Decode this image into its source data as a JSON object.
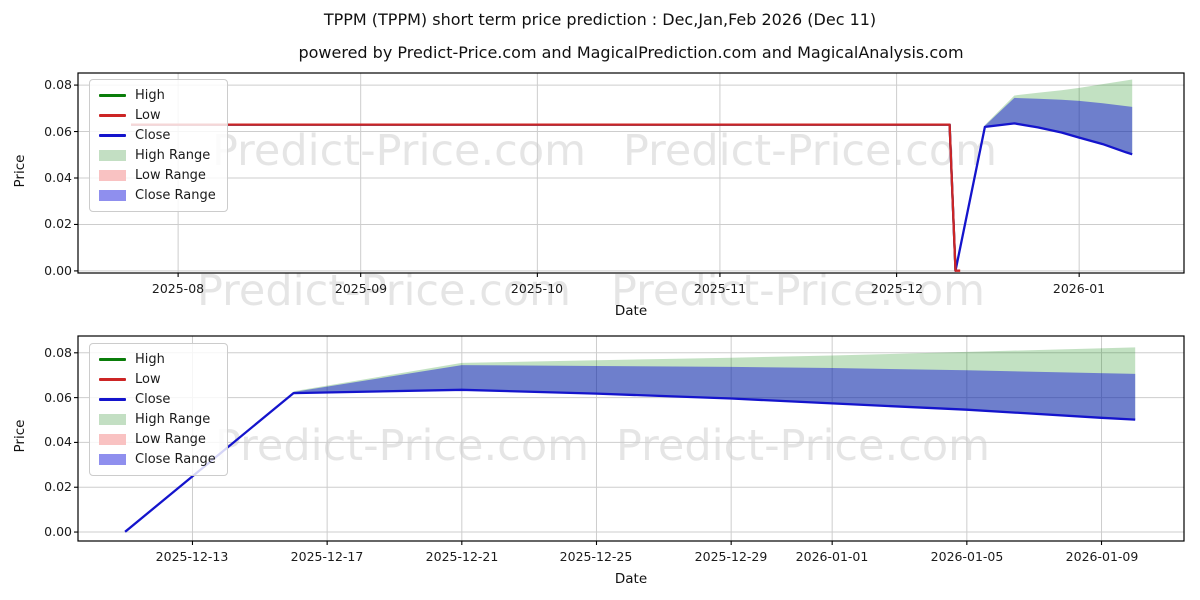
{
  "header": {
    "title": "TPPM (TPPM) short term price prediction : Dec,Jan,Feb 2026 (Dec 11)",
    "subtitle": "powered by Predict-Price.com and MagicalPrediction.com and MagicalAnalysis.com"
  },
  "watermark": {
    "text": "Predict-Price.com"
  },
  "colors": {
    "high_line": "#0a7d0a",
    "low_line": "#cc2525",
    "close_line": "#1414cc",
    "high_range_fill": "#c3dfc3",
    "low_range_fill": "#f9c2c2",
    "close_range_fill": "#8f8fee",
    "grid": "#cdcdcd",
    "spine": "#000000",
    "watermark_gray": "rgba(0,0,0,0.10)"
  },
  "legend_items": [
    {
      "label": "High",
      "swatch": "line",
      "color": "#0a7d0a"
    },
    {
      "label": "Low",
      "swatch": "line",
      "color": "#cc2525"
    },
    {
      "label": "Close",
      "swatch": "line",
      "color": "#1414cc"
    },
    {
      "label": "High Range",
      "swatch": "patch",
      "color": "#c3dfc3"
    },
    {
      "label": "Low Range",
      "swatch": "patch",
      "color": "#f9c2c2"
    },
    {
      "label": "Close Range",
      "swatch": "patch",
      "color": "#8f8fee"
    }
  ],
  "chart_data": [
    {
      "type": "line",
      "name": "history-and-prediction",
      "xlabel": "Date",
      "ylabel": "Price",
      "x_unit": "days since 2025-07-24",
      "xlim": [
        -9,
        178.8
      ],
      "ylim": [
        -0.0009,
        0.0852
      ],
      "grid": true,
      "legend_position": "upper left",
      "xticks": [
        {
          "x": 8,
          "label": "2025-08"
        },
        {
          "x": 39,
          "label": "2025-09"
        },
        {
          "x": 69,
          "label": "2025-10"
        },
        {
          "x": 100,
          "label": "2025-11"
        },
        {
          "x": 130,
          "label": "2025-12"
        },
        {
          "x": 161,
          "label": "2026-01"
        }
      ],
      "yticks": [
        {
          "y": 0.0,
          "label": "0.00"
        },
        {
          "y": 0.02,
          "label": "0.02"
        },
        {
          "y": 0.04,
          "label": "0.04"
        },
        {
          "y": 0.06,
          "label": "0.06"
        },
        {
          "y": 0.08,
          "label": "0.08"
        }
      ],
      "bands": [
        {
          "name": "High Range",
          "fill": "rgba(0,128,0,0.24)",
          "upper": [
            [
              145,
              0.0628
            ],
            [
              150,
              0.0755
            ],
            [
              154,
              0.0767
            ],
            [
              158,
              0.0778
            ],
            [
              161,
              0.0788
            ],
            [
              165,
              0.0804
            ],
            [
              170,
              0.0824
            ]
          ],
          "lower": [
            [
              170,
              0.0502
            ],
            [
              169,
              0.051
            ],
            [
              165,
              0.0546
            ],
            [
              161,
              0.0574
            ],
            [
              158,
              0.0596
            ],
            [
              154,
              0.0618
            ],
            [
              150,
              0.0635
            ],
            [
              145,
              0.062
            ]
          ]
        },
        {
          "name": "Close Range",
          "fill": "rgba(10,10,215,0.46)",
          "upper": [
            [
              145,
              0.0625
            ],
            [
              150,
              0.0745
            ],
            [
              154,
              0.0741
            ],
            [
              158,
              0.0737
            ],
            [
              161,
              0.0732
            ],
            [
              165,
              0.0722
            ],
            [
              170,
              0.0706
            ]
          ],
          "lower": [
            [
              170,
              0.0502
            ],
            [
              169,
              0.051
            ],
            [
              165,
              0.0546
            ],
            [
              161,
              0.0574
            ],
            [
              158,
              0.0596
            ],
            [
              154,
              0.0618
            ],
            [
              150,
              0.0635
            ],
            [
              145,
              0.062
            ]
          ]
        }
      ],
      "series": [
        {
          "name": "High",
          "color": "#0a7d0a",
          "width": 2.2,
          "points": [
            [
              0,
              0.063
            ],
            [
              139,
              0.063
            ],
            [
              140,
              0.0001
            ]
          ]
        },
        {
          "name": "Close",
          "color": "#1414cc",
          "width": 2.3,
          "points": [
            [
              0,
              0.063
            ],
            [
              139,
              0.063
            ],
            [
              140,
              0.0001
            ],
            [
              145,
              0.062
            ],
            [
              150,
              0.0635
            ],
            [
              154,
              0.0618
            ],
            [
              158,
              0.0596
            ],
            [
              161,
              0.0574
            ],
            [
              165,
              0.0546
            ],
            [
              169,
              0.051
            ],
            [
              170,
              0.0502
            ]
          ]
        },
        {
          "name": "Low",
          "color": "#cc2525",
          "width": 2.3,
          "points": [
            [
              0,
              0.063
            ],
            [
              139,
              0.063
            ],
            [
              140,
              0.0001
            ],
            [
              140.8,
              0.0001
            ]
          ]
        }
      ]
    },
    {
      "type": "line",
      "name": "prediction-detail",
      "xlabel": "Date",
      "ylabel": "Price",
      "x_unit": "days since 2025-12-11",
      "xlim": [
        -1.4,
        31.45
      ],
      "ylim": [
        -0.004,
        0.0875
      ],
      "grid": true,
      "legend_position": "upper left",
      "xticks": [
        {
          "x": 2,
          "label": "2025-12-13"
        },
        {
          "x": 6,
          "label": "2025-12-17"
        },
        {
          "x": 10,
          "label": "2025-12-21"
        },
        {
          "x": 14,
          "label": "2025-12-25"
        },
        {
          "x": 18,
          "label": "2025-12-29"
        },
        {
          "x": 21,
          "label": "2026-01-01"
        },
        {
          "x": 25,
          "label": "2026-01-05"
        },
        {
          "x": 29,
          "label": "2026-01-09"
        }
      ],
      "yticks": [
        {
          "y": 0.0,
          "label": "0.00"
        },
        {
          "y": 0.02,
          "label": "0.02"
        },
        {
          "y": 0.04,
          "label": "0.04"
        },
        {
          "y": 0.06,
          "label": "0.06"
        },
        {
          "y": 0.08,
          "label": "0.08"
        }
      ],
      "bands": [
        {
          "name": "High Range",
          "fill": "rgba(0,128,0,0.24)",
          "upper": [
            [
              5,
              0.0628
            ],
            [
              10,
              0.0755
            ],
            [
              14,
              0.0767
            ],
            [
              18,
              0.0778
            ],
            [
              21,
              0.0788
            ],
            [
              25,
              0.0804
            ],
            [
              30,
              0.0824
            ]
          ],
          "lower": [
            [
              30,
              0.0502
            ],
            [
              29,
              0.051
            ],
            [
              25,
              0.0546
            ],
            [
              21,
              0.0574
            ],
            [
              18,
              0.0596
            ],
            [
              14,
              0.0618
            ],
            [
              10,
              0.0635
            ],
            [
              5,
              0.062
            ]
          ]
        },
        {
          "name": "Close Range",
          "fill": "rgba(10,10,215,0.46)",
          "upper": [
            [
              5,
              0.0625
            ],
            [
              10,
              0.0745
            ],
            [
              14,
              0.0741
            ],
            [
              18,
              0.0737
            ],
            [
              21,
              0.0732
            ],
            [
              25,
              0.0722
            ],
            [
              30,
              0.0706
            ]
          ],
          "lower": [
            [
              30,
              0.0502
            ],
            [
              29,
              0.051
            ],
            [
              25,
              0.0546
            ],
            [
              21,
              0.0574
            ],
            [
              18,
              0.0596
            ],
            [
              14,
              0.0618
            ],
            [
              10,
              0.0635
            ],
            [
              5,
              0.062
            ]
          ]
        }
      ],
      "series": [
        {
          "name": "Close",
          "color": "#1414cc",
          "width": 2.3,
          "points": [
            [
              0,
              0.0001
            ],
            [
              5,
              0.062
            ],
            [
              10,
              0.0635
            ],
            [
              14,
              0.0618
            ],
            [
              18,
              0.0596
            ],
            [
              21,
              0.0574
            ],
            [
              25,
              0.0546
            ],
            [
              29,
              0.051
            ],
            [
              30,
              0.0502
            ]
          ]
        }
      ]
    }
  ]
}
